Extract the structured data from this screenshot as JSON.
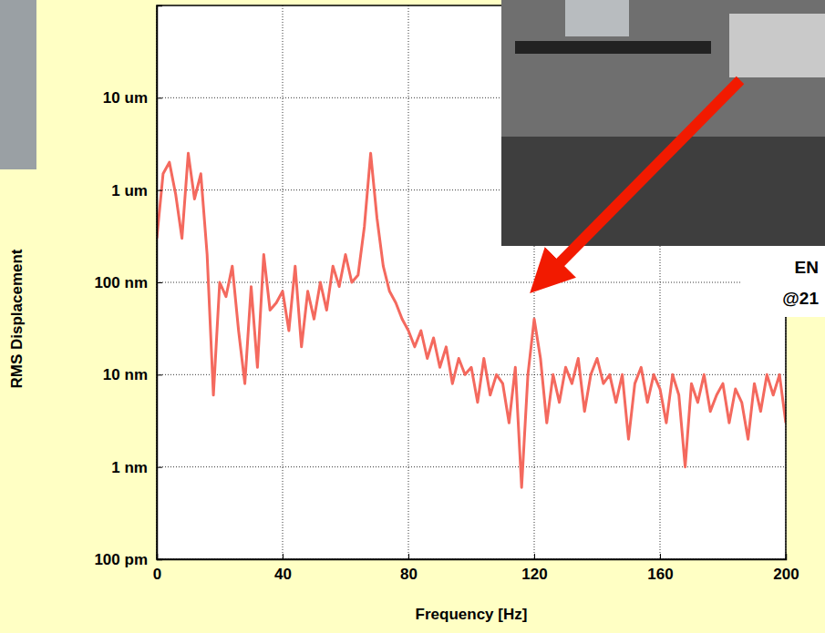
{
  "chart_data": {
    "type": "line",
    "x_label": "Frequency [Hz]",
    "y_label": "RMS Displacement",
    "annotations": [
      "EN",
      "@21"
    ],
    "color": "#f4695e",
    "log": "y",
    "grid": true,
    "xlim": [
      0,
      200
    ],
    "xticks": [
      0,
      40,
      80,
      120,
      160,
      200
    ],
    "ylim": [
      1e-10,
      0.0001
    ],
    "yticks": [
      {
        "value": 1e-10,
        "label": "100 pm"
      },
      {
        "value": 1e-09,
        "label": "1 nm"
      },
      {
        "value": 1e-08,
        "label": "10 nm"
      },
      {
        "value": 1e-07,
        "label": "100 nm"
      },
      {
        "value": 1e-06,
        "label": "1 um"
      },
      {
        "value": 1e-05,
        "label": "10 um"
      }
    ],
    "x": [
      0,
      2,
      4,
      6,
      8,
      10,
      12,
      14,
      16,
      18,
      20,
      22,
      24,
      26,
      28,
      30,
      32,
      34,
      36,
      38,
      40,
      42,
      44,
      46,
      48,
      50,
      52,
      54,
      56,
      58,
      60,
      62,
      64,
      66,
      68,
      70,
      72,
      74,
      76,
      78,
      80,
      82,
      84,
      86,
      88,
      90,
      92,
      94,
      96,
      98,
      100,
      102,
      104,
      106,
      108,
      110,
      112,
      114,
      116,
      118,
      120,
      122,
      124,
      126,
      128,
      130,
      132,
      134,
      136,
      138,
      140,
      142,
      144,
      146,
      148,
      150,
      152,
      154,
      156,
      158,
      160,
      162,
      164,
      166,
      168,
      170,
      172,
      174,
      176,
      178,
      180,
      182,
      184,
      186,
      188,
      190,
      192,
      194,
      196,
      198,
      200
    ],
    "values": [
      3e-07,
      1.5e-06,
      2e-06,
      9e-07,
      3e-07,
      2.5e-06,
      8e-07,
      1.5e-06,
      2e-07,
      6e-09,
      1e-07,
      7e-08,
      1.5e-07,
      3e-08,
      8e-09,
      9e-08,
      1.2e-08,
      2e-07,
      5e-08,
      6e-08,
      8e-08,
      3e-08,
      1.5e-07,
      2e-08,
      8e-08,
      4e-08,
      1e-07,
      5e-08,
      1.5e-07,
      9e-08,
      2e-07,
      1e-07,
      1.2e-07,
      4e-07,
      2.5e-06,
      5e-07,
      1.5e-07,
      8e-08,
      6e-08,
      4e-08,
      3e-08,
      2e-08,
      3e-08,
      1.5e-08,
      2.5e-08,
      1.2e-08,
      2e-08,
      8e-09,
      1.5e-08,
      1e-08,
      1.2e-08,
      5e-09,
      1.5e-08,
      6e-09,
      1e-08,
      8e-09,
      3e-09,
      1.2e-08,
      6e-10,
      1e-08,
      4e-08,
      1.5e-08,
      3e-09,
      1e-08,
      5e-09,
      1.2e-08,
      8e-09,
      1.5e-08,
      4e-09,
      1e-08,
      1.5e-08,
      8e-09,
      1e-08,
      5e-09,
      1e-08,
      2e-09,
      8e-09,
      1.2e-08,
      5e-09,
      1e-08,
      7e-09,
      3e-09,
      1e-08,
      6e-09,
      1e-09,
      8e-09,
      5e-09,
      1e-08,
      4e-09,
      6e-09,
      8e-09,
      3e-09,
      7e-09,
      5e-09,
      2e-09,
      8e-09,
      4e-09,
      1e-08,
      6e-09,
      1e-08,
      3e-09
    ]
  }
}
